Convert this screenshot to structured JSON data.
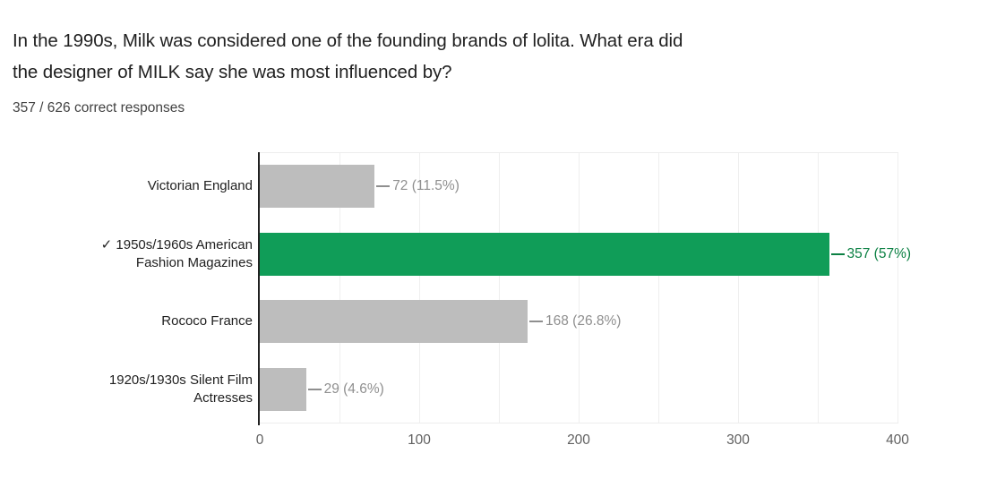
{
  "chart_data": {
    "type": "bar",
    "orientation": "horizontal",
    "title_lines": [
      "In the 1990s, Milk was considered one of the founding brands of lolita. What era did",
      "the designer of MILK say she was most influenced by?"
    ],
    "title": "In the 1990s, Milk was considered one of the founding brands of lolita. What era did the designer of MILK say she was most influenced by?",
    "subtitle": "357 / 626 correct responses",
    "categories": [
      "Victorian England",
      "1950s/1960s American Fashion Magazines",
      "Rococo France",
      "1920s/1930s Silent Film Actresses"
    ],
    "values": [
      72,
      357,
      168,
      29
    ],
    "value_labels": [
      "72 (11.5%)",
      "357 (57%)",
      "168 (26.8%)",
      "29 (4.6%)"
    ],
    "correct_index": 1,
    "correct_mark": "✓",
    "xlim": [
      0,
      400
    ],
    "x_ticks": [
      0,
      100,
      200,
      300,
      400
    ],
    "grid_step": 50,
    "grid": true,
    "legend": "none",
    "colors": {
      "bar_default": "#bdbdbd",
      "bar_correct": "#109d58",
      "value_label_default": "#8f8f8f",
      "value_label_correct": "#0b8043",
      "axis_line": "#212121",
      "gridline": "#efefef",
      "tick_label": "#616161",
      "category_label": "#212121"
    }
  }
}
